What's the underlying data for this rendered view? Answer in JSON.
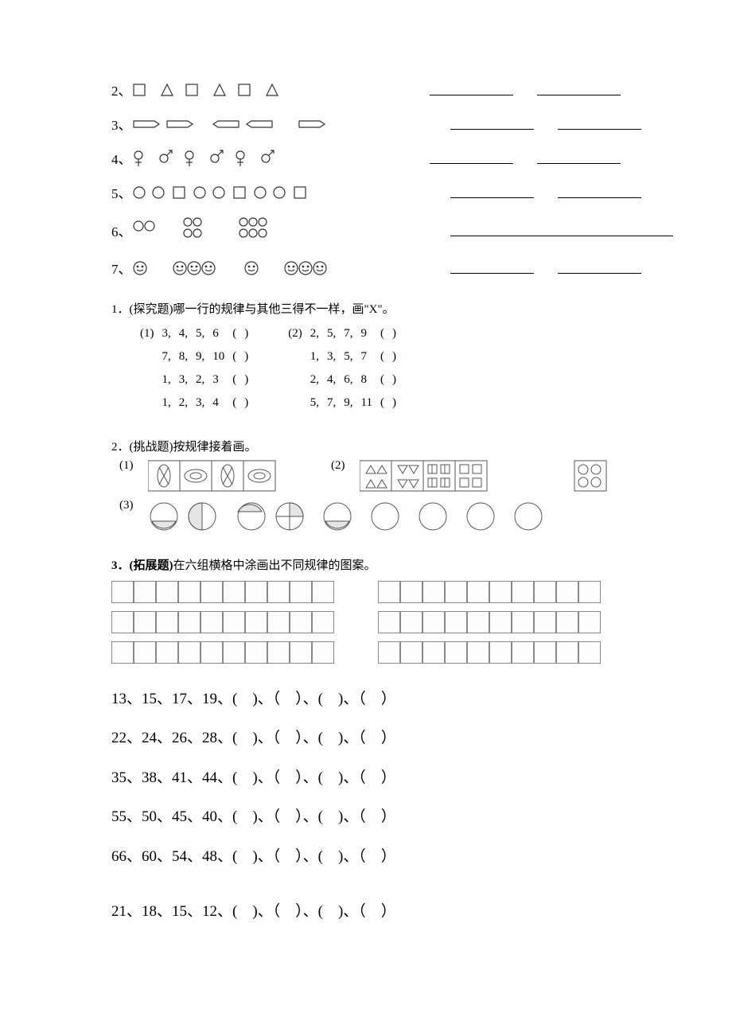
{
  "patterns": {
    "row2": {
      "num": "2、"
    },
    "row3": {
      "num": "3、"
    },
    "row4": {
      "num": "4、"
    },
    "row5": {
      "num": "5、"
    },
    "row6": {
      "num": "6、"
    },
    "row7": {
      "num": "7、"
    }
  },
  "q1": {
    "title": "1．(探究题)哪一行的规律与其他三得不一样，画\"X\"。",
    "left_label": "(1)",
    "right_label": "(2)",
    "left_rows": [
      [
        "3,",
        "4,",
        "5,",
        "6",
        "(",
        ")"
      ],
      [
        "7,",
        "8,",
        "9,",
        "10",
        "(",
        ")"
      ],
      [
        "1,",
        "3,",
        "2,",
        "3",
        "(",
        ")"
      ],
      [
        "1,",
        "2,",
        "3,",
        "4",
        "(",
        ")"
      ]
    ],
    "right_rows": [
      [
        "2,",
        "5,",
        "7,",
        "9",
        "(",
        ")"
      ],
      [
        "1,",
        "3,",
        "5,",
        "7",
        "(",
        ")"
      ],
      [
        "2,",
        "4,",
        "6,",
        "8",
        "(",
        ")"
      ],
      [
        "5,",
        "7,",
        "9,",
        "11",
        "(",
        ")"
      ]
    ]
  },
  "q2": {
    "title": "2．(挑战题)按规律接着画。",
    "labels": [
      "(1)",
      "(2)",
      "(3)"
    ]
  },
  "q3": {
    "title": "3．(拓展题)在六组横格中涂画出不同规律的图案。",
    "grid_cols": 10,
    "grid_rows": 6
  },
  "numseq": {
    "lines": [
      "13、15、17、19、(　)、（　）、(　)、（　）",
      "22、24、26、28、(　)、（　）、(　)、（　）",
      "35、38、41、44、(　)、（　）、(　)、（　）",
      "55、50、45、40、(　)、（　）、(　)、（　）",
      "66、60、54、48、(　)、（　）、(　)、（　）",
      "21、18、15、12、(　)、（　）、(　)、（　）"
    ]
  },
  "colors": {
    "stroke": "#333333",
    "light": "#888888",
    "hatch": "#999999"
  }
}
